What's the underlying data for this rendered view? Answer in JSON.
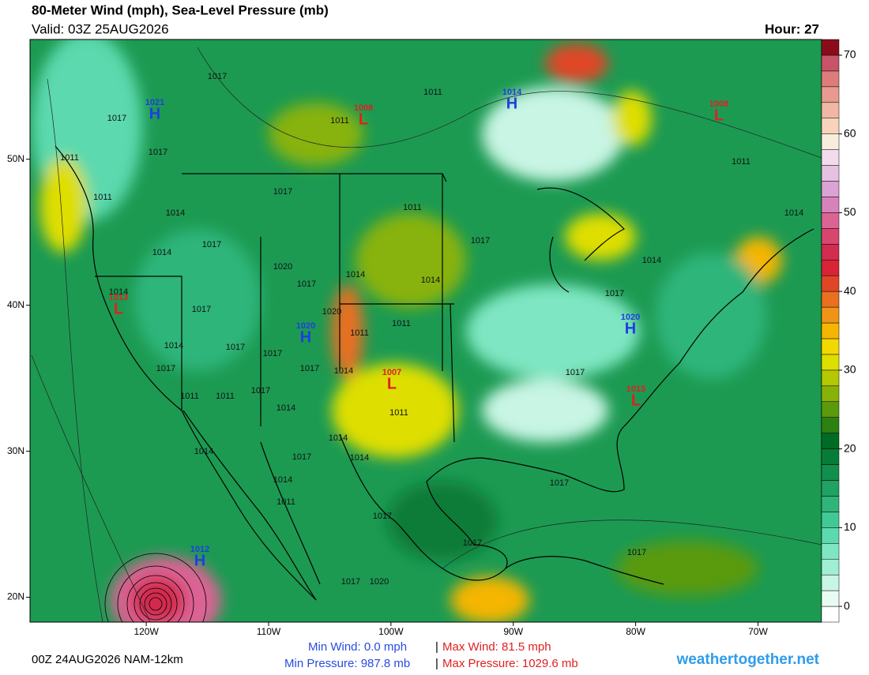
{
  "header": {
    "title": "80-Meter Wind (mph), Sea-Level Pressure (mb)",
    "valid": "Valid: 03Z 25AUG2026",
    "hour": "Hour: 27"
  },
  "map": {
    "lon_lim": [
      -129.5,
      -64.8
    ],
    "lat_lim": [
      18.3,
      58.2
    ],
    "lon_ticks": [
      {
        "value": -120,
        "label": "120W"
      },
      {
        "value": -110,
        "label": "110W"
      },
      {
        "value": -100,
        "label": "100W"
      },
      {
        "value": -90,
        "label": "90W"
      },
      {
        "value": -80,
        "label": "80W"
      },
      {
        "value": -70,
        "label": "70W"
      }
    ],
    "lat_ticks": [
      {
        "value": 20,
        "label": "20N"
      },
      {
        "value": 30,
        "label": "30N"
      },
      {
        "value": 40,
        "label": "40N"
      },
      {
        "value": 50,
        "label": "50N"
      }
    ]
  },
  "colorbar": {
    "lim": [
      -2,
      72
    ],
    "ticks": [
      0,
      10,
      20,
      30,
      40,
      50,
      60,
      70
    ],
    "colors": [
      "#ffffff",
      "#e8fbf2",
      "#c8f5e4",
      "#a0efd4",
      "#7ee6c2",
      "#5cd9ae",
      "#40c994",
      "#2fb57a",
      "#1fa262",
      "#128f4c",
      "#077c38",
      "#006b25",
      "#2d8012",
      "#5a9a0c",
      "#88b208",
      "#b4c804",
      "#dede00",
      "#f2d800",
      "#f4b600",
      "#f09418",
      "#e87020",
      "#e04626",
      "#d82436",
      "#d22c4e",
      "#d84670",
      "#dc6494",
      "#d882bc",
      "#dca2d4",
      "#e6c2e2",
      "#f2dcec",
      "#f8ecdc",
      "#f6d4bc",
      "#f0b8a4",
      "#e89a90",
      "#de7c7c",
      "#c85468",
      "#8a0c1a"
    ]
  },
  "centers": [
    {
      "kind": "H",
      "value": "1021",
      "color": "#1e3fe0"
    },
    {
      "kind": "L",
      "value": "1008",
      "color": "#e02020"
    },
    {
      "kind": "H",
      "value": "1014",
      "color": "#1e3fe0"
    },
    {
      "kind": "L",
      "value": "1008",
      "color": "#e02020"
    },
    {
      "kind": "L",
      "value": "1013",
      "color": "#e02020"
    },
    {
      "kind": "H",
      "value": "1020",
      "color": "#1e3fe0"
    },
    {
      "kind": "L",
      "value": "1007",
      "color": "#e02020"
    },
    {
      "kind": "H",
      "value": "1020",
      "color": "#1e3fe0"
    },
    {
      "kind": "L",
      "value": "1015",
      "color": "#e02020"
    },
    {
      "kind": "H",
      "value": "1012",
      "color": "#1e3fe0"
    }
  ],
  "isobar_labels": [
    "1017",
    "1011",
    "1011",
    "1017",
    "1017",
    "1011",
    "1011",
    "1017",
    "1011",
    "1014",
    "1014",
    "1011",
    "1017",
    "1014",
    "1017",
    "1014",
    "1020",
    "1017",
    "1014",
    "1014",
    "1017",
    "1020",
    "1011",
    "1014",
    "1017",
    "1014",
    "1017",
    "1017",
    "1011",
    "1017",
    "1017",
    "1014",
    "1017",
    "1011",
    "1011",
    "1017",
    "1014",
    "1011",
    "1014",
    "1014",
    "1017",
    "1014",
    "1014",
    "1017",
    "1011",
    "1017",
    "1017",
    "1017",
    "1017",
    "1020"
  ],
  "footer": {
    "run": "00Z 24AUG2026 NAM-12km",
    "min_wind": "Min Wind:  0.0 mph",
    "max_wind": "Max Wind: 81.5 mph",
    "min_pressure": "Min Pressure: 987.8 mb",
    "max_pressure": "Max Pressure: 1029.6 mb",
    "separator": "|",
    "site": "weathertogether.net"
  }
}
